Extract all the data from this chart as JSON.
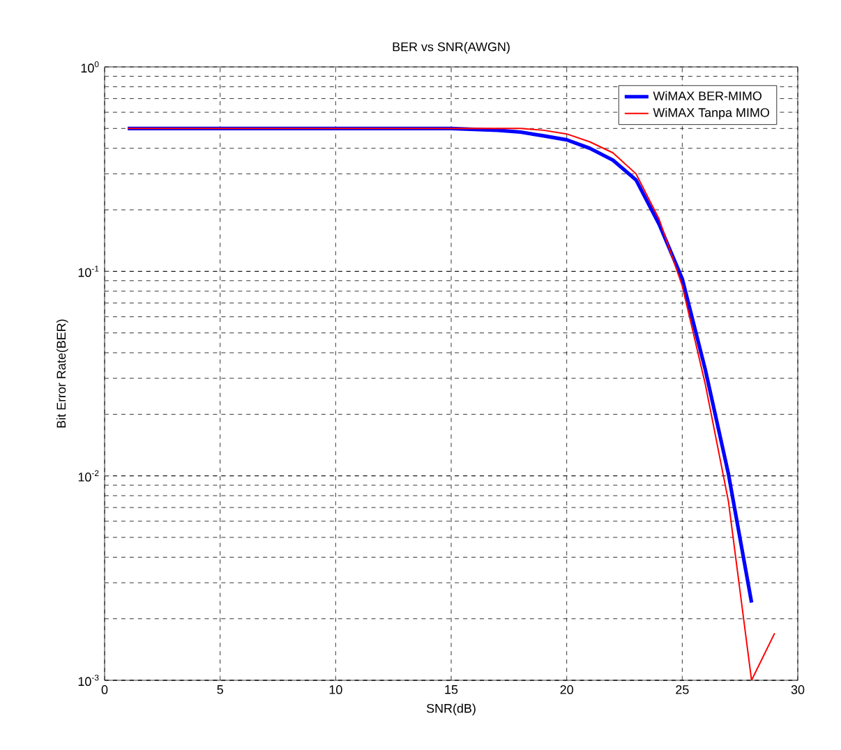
{
  "chart_data": {
    "type": "line",
    "title": "BER vs SNR(AWGN)",
    "xlabel": "SNR(dB)",
    "ylabel": "Bit Error Rate(BER)",
    "log": "y",
    "grid": true,
    "legend": "top right",
    "marker": "none",
    "line_style": "solid",
    "xlim": [
      0,
      30
    ],
    "xticks": [
      0,
      5,
      10,
      15,
      20,
      25,
      30
    ],
    "ylim": [
      0.001,
      1
    ],
    "yticks": [
      {
        "value": 0.001,
        "label": "10$^{-3}$"
      },
      {
        "value": 0.01,
        "label": "10$^{-2}$"
      },
      {
        "value": 0.1,
        "label": "10$^{-1}$"
      },
      {
        "value": 1,
        "label": "10$^{0}$"
      }
    ],
    "series": [
      {
        "name": "WiMAX BER-MIMO",
        "color": "#0000ff",
        "x": [
          1,
          5,
          10,
          15,
          17,
          18,
          19,
          20,
          21,
          22,
          23,
          24,
          25,
          26,
          27,
          28
        ],
        "values": [
          0.5,
          0.5,
          0.5,
          0.5,
          0.49,
          0.48,
          0.46,
          0.44,
          0.4,
          0.35,
          0.28,
          0.17,
          0.092,
          0.033,
          0.0102,
          0.0024
        ]
      },
      {
        "name": "WiMAX Tanpa MIMO",
        "color": "#ff0000",
        "x": [
          1,
          5,
          10,
          15,
          18,
          19,
          20,
          21,
          22,
          23,
          24,
          25,
          26,
          27,
          28,
          29
        ],
        "values": [
          0.5,
          0.5,
          0.5,
          0.5,
          0.5,
          0.49,
          0.47,
          0.43,
          0.38,
          0.3,
          0.18,
          0.085,
          0.028,
          0.0075,
          0.001,
          0.0017
        ]
      }
    ]
  }
}
